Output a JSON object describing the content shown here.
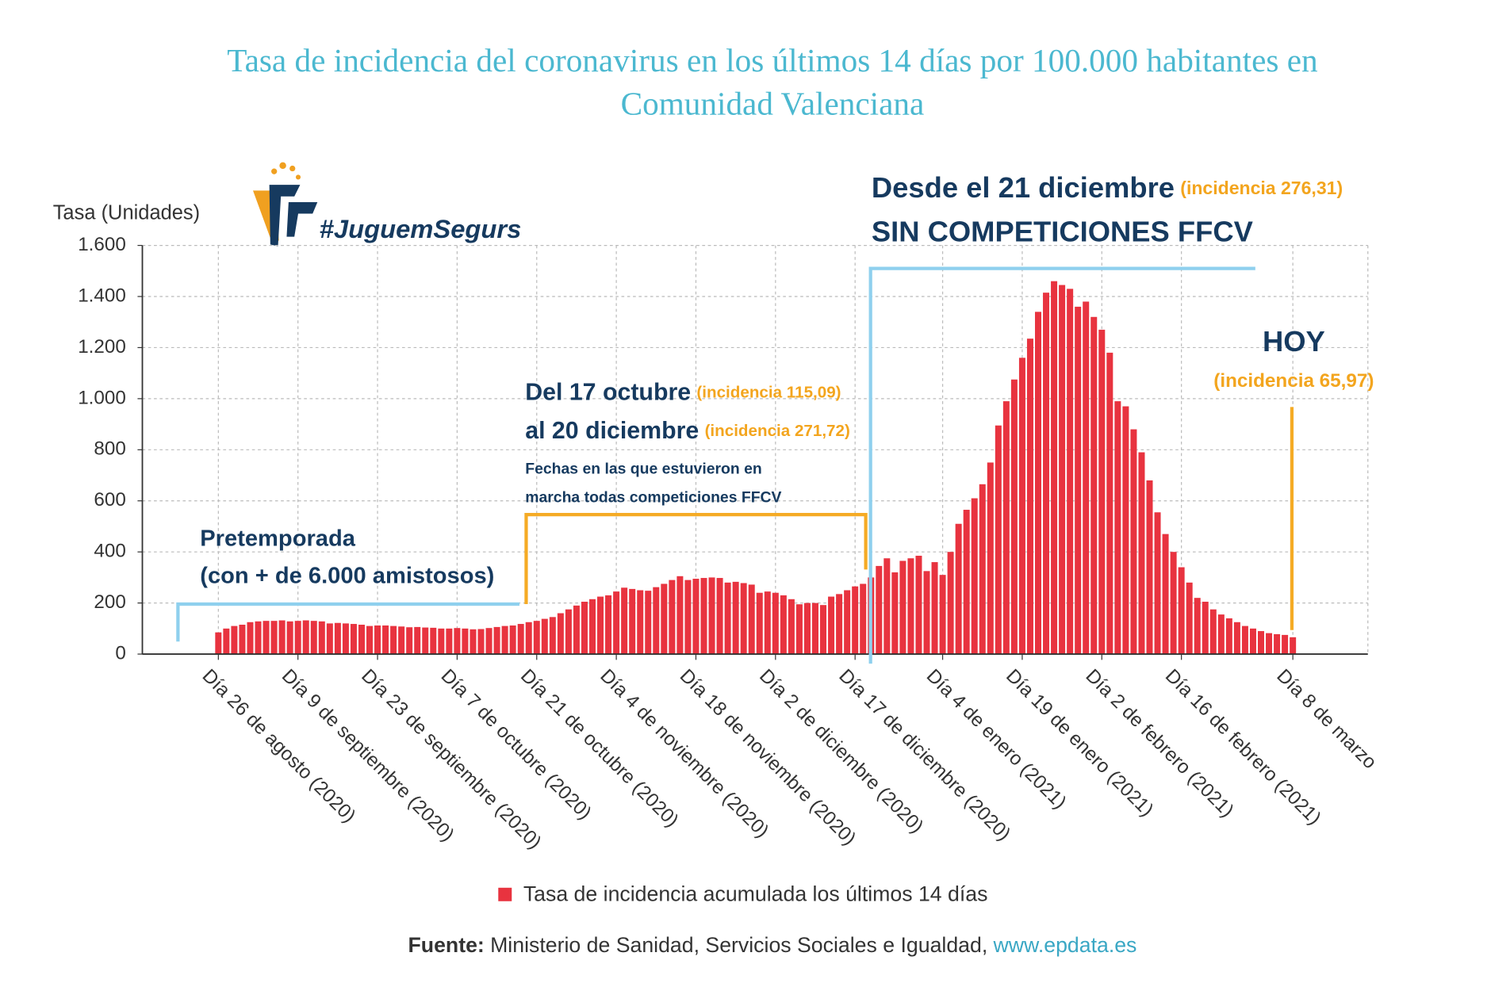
{
  "chart_data": {
    "type": "bar",
    "title": [
      "Tasa de incidencia del coronavirus en los últimos 14 días por 100.000 habitantes en",
      "Comunidad Valenciana"
    ],
    "y_axis_label": "Tasa (Unidades)",
    "logo_text": "#JuguemSegurs",
    "categories": [
      "Día 26 de agosto (2020)",
      null,
      null,
      null,
      null,
      null,
      null,
      null,
      null,
      null,
      "Día 9 de septiembre (2020)",
      null,
      null,
      null,
      null,
      null,
      null,
      null,
      null,
      null,
      "Día 23 de septiembre (2020)",
      null,
      null,
      null,
      null,
      null,
      null,
      null,
      null,
      null,
      "Día 7 de octubre (2020)",
      null,
      null,
      null,
      null,
      null,
      null,
      null,
      null,
      null,
      "Día 21 de octubre (2020)",
      null,
      null,
      null,
      null,
      null,
      null,
      null,
      null,
      null,
      "Día 4 de noviembre (2020)",
      null,
      null,
      null,
      null,
      null,
      null,
      null,
      null,
      null,
      "Día 18 de noviembre (2020)",
      null,
      null,
      null,
      null,
      null,
      null,
      null,
      null,
      null,
      "Día 2 de diciembre (2020)",
      null,
      null,
      null,
      null,
      null,
      null,
      null,
      null,
      null,
      "Día 17 de diciembre (2020)",
      null,
      null,
      null,
      null,
      null,
      null,
      null,
      null,
      null,
      null,
      "Día 4 de enero (2021)",
      null,
      null,
      null,
      null,
      null,
      null,
      null,
      null,
      null,
      "Día 19 de enero (2021)",
      null,
      null,
      null,
      null,
      null,
      null,
      null,
      null,
      null,
      "Día 2 de febrero (2021)",
      null,
      null,
      null,
      null,
      null,
      null,
      null,
      null,
      null,
      "Día 16 de febrero (2021)",
      null,
      null,
      null,
      null,
      null,
      null,
      null,
      null,
      null,
      null,
      null,
      null,
      null,
      "Día 8 de marzo"
    ],
    "series": [
      {
        "name": "Tasa de incidencia acumulada los últimos 14 días",
        "color": "#e8333f",
        "values": [
          85,
          100,
          110,
          115,
          125,
          128,
          130,
          130,
          132,
          128,
          130,
          132,
          130,
          128,
          120,
          122,
          120,
          118,
          115,
          110,
          112,
          112,
          110,
          108,
          105,
          106,
          104,
          103,
          100,
          100,
          102,
          100,
          97,
          98,
          102,
          106,
          110,
          112,
          118,
          125,
          130,
          138,
          145,
          160,
          175,
          190,
          205,
          215,
          225,
          230,
          245,
          260,
          255,
          250,
          248,
          262,
          275,
          290,
          305,
          290,
          295,
          298,
          300,
          298,
          280,
          283,
          278,
          272,
          240,
          245,
          240,
          230,
          215,
          195,
          200,
          200,
          192,
          225,
          235,
          250,
          265,
          275,
          300,
          345,
          375,
          320,
          365,
          375,
          385,
          325,
          360,
          310,
          400,
          510,
          565,
          610,
          665,
          750,
          895,
          990,
          1075,
          1160,
          1235,
          1340,
          1415,
          1460,
          1445,
          1430,
          1360,
          1380,
          1320,
          1270,
          1180,
          990,
          970,
          880,
          790,
          680,
          555,
          470,
          400,
          340,
          280,
          220,
          205,
          175,
          155,
          140,
          125,
          110,
          100,
          90,
          82,
          78,
          75,
          65.97
        ]
      }
    ],
    "ylim": [
      0,
      1600
    ],
    "yticks": [
      0,
      200,
      400,
      600,
      800,
      {
        "value": 1000,
        "label": "1.000"
      },
      {
        "value": 1200,
        "label": "1.200"
      },
      {
        "value": 1400,
        "label": "1.400"
      },
      {
        "value": 1600,
        "label": "1.600"
      }
    ],
    "grid": true,
    "annotations": {
      "pretemporada": [
        "Pretemporada",
        "(con + de 6.000 amistosos)"
      ],
      "competiciones": {
        "line1": "Del 17 octubre",
        "line1_note": "(incidencia 115,09)",
        "line2": "al 20 diciembre",
        "line2_note": "(incidencia 271,72)",
        "detail": [
          "Fechas en las que estuvieron en",
          "marcha todas competiciones FFCV"
        ]
      },
      "sin_competiciones": {
        "line1": "Desde el 21 diciembre",
        "line1_note": "(incidencia 276,31)",
        "line2": "SIN COMPETICIONES FFCV"
      },
      "hoy": {
        "label": "HOY",
        "note": "(incidencia 65,97)"
      }
    },
    "source": {
      "label": "Fuente:",
      "text": "Ministerio de Sanidad, Servicios Sociales e Igualdad,",
      "link": "www.epdata.es"
    }
  }
}
